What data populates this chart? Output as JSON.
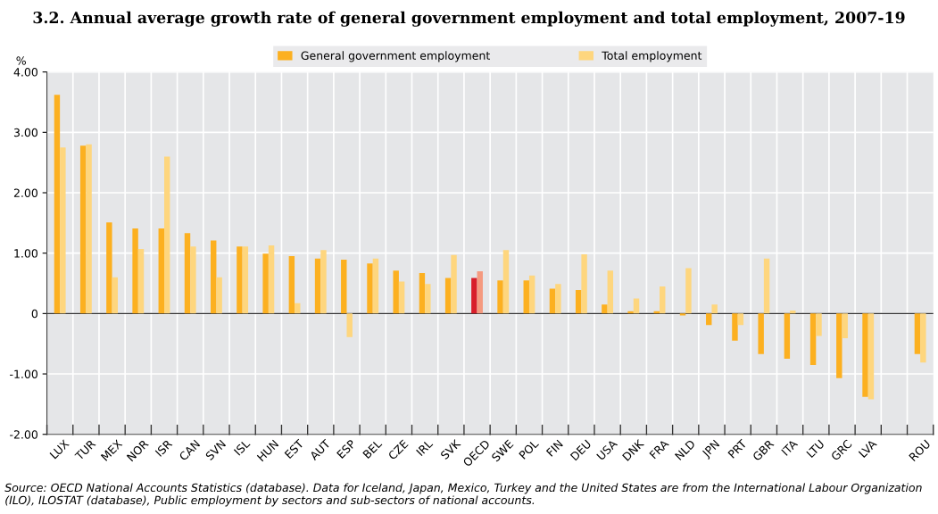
{
  "chart_data": {
    "type": "bar",
    "title": "3.2. Annual average growth rate of general government employment and total employment, 2007-19",
    "ylabel": "%",
    "categories": [
      "LUX",
      "TUR",
      "MEX",
      "NOR",
      "ISR",
      "CAN",
      "SVN",
      "ISL",
      "HUN",
      "EST",
      "AUT",
      "ESP",
      "BEL",
      "CZE",
      "IRL",
      "SVK",
      "OECD",
      "SWE",
      "POL",
      "FIN",
      "DEU",
      "USA",
      "DNK",
      "FRA",
      "NLD",
      "JPN",
      "PRT",
      "GBR",
      "ITA",
      "LTU",
      "GRC",
      "LVA",
      null,
      "ROU"
    ],
    "series": [
      {
        "name": "General government employment",
        "color": "#fcb020",
        "colors": [
          "#fcb020",
          "#fcb020",
          "#fcb020",
          "#fcb020",
          "#fcb020",
          "#fcb020",
          "#fcb020",
          "#fcb020",
          "#fcb020",
          "#fcb020",
          "#fcb020",
          "#fcb020",
          "#fcb020",
          "#fcb020",
          "#fcb020",
          "#fcb020",
          "#d81e2a",
          "#fcb020",
          "#fcb020",
          "#fcb020",
          "#fcb020",
          "#fcb020",
          "#fcb020",
          "#fcb020",
          "#fcb020",
          "#fcb020",
          "#fcb020",
          "#fcb020",
          "#fcb020",
          "#fcb020",
          "#fcb020",
          "#fcb020",
          "#fcb020",
          "#fcb020"
        ],
        "values": [
          3.62,
          2.78,
          1.51,
          1.41,
          1.41,
          1.33,
          1.21,
          1.11,
          0.99,
          0.95,
          0.91,
          0.89,
          0.83,
          0.71,
          0.67,
          0.59,
          0.59,
          0.55,
          0.55,
          0.41,
          0.39,
          0.15,
          0.04,
          0.04,
          -0.03,
          -0.19,
          -0.45,
          -0.67,
          -0.75,
          -0.85,
          -1.07,
          -1.38,
          null,
          -0.67
        ]
      },
      {
        "name": "Total employment",
        "color": "#fed67e",
        "colors": [
          "#fed67e",
          "#fed67e",
          "#fed67e",
          "#fed67e",
          "#fed67e",
          "#fed67e",
          "#fed67e",
          "#fed67e",
          "#fed67e",
          "#fed67e",
          "#fed67e",
          "#fed67e",
          "#fed67e",
          "#fed67e",
          "#fed67e",
          "#fed67e",
          "#f59a7f",
          "#fed67e",
          "#fed67e",
          "#fed67e",
          "#fed67e",
          "#fed67e",
          "#fed67e",
          "#fed67e",
          "#fed67e",
          "#fed67e",
          "#fed67e",
          "#fed67e",
          "#fed67e",
          "#fed67e",
          "#fed67e",
          "#fed67e",
          "#fed67e",
          "#fed67e"
        ],
        "values": [
          2.75,
          2.8,
          0.6,
          1.07,
          2.6,
          1.11,
          0.6,
          1.11,
          1.13,
          0.17,
          1.05,
          -0.39,
          0.91,
          0.53,
          0.49,
          0.97,
          0.7,
          1.05,
          0.63,
          0.49,
          0.98,
          0.71,
          0.25,
          0.45,
          0.75,
          0.15,
          -0.19,
          0.91,
          0.05,
          -0.37,
          -0.41,
          -1.42,
          null,
          -0.81
        ]
      }
    ],
    "ylim": [
      -2,
      4
    ],
    "yticks": [
      {
        "value": -2,
        "label": "-2.00"
      },
      {
        "value": -1,
        "label": "-1.00"
      },
      0,
      {
        "value": 1,
        "label": "1.00"
      },
      {
        "value": 2,
        "label": "2.00"
      },
      {
        "value": 3,
        "label": "3.00"
      },
      {
        "value": 4,
        "label": "4.00"
      }
    ],
    "grid": true,
    "legend": "top",
    "annotations": [
      "Source: OECD National Accounts Statistics (database). Data for Iceland, Japan, Mexico, Turkey and the United States are from the International Labour Organization (ILO), ILOSTAT (database), Public employment by sectors and sub-sectors of national accounts."
    ]
  }
}
